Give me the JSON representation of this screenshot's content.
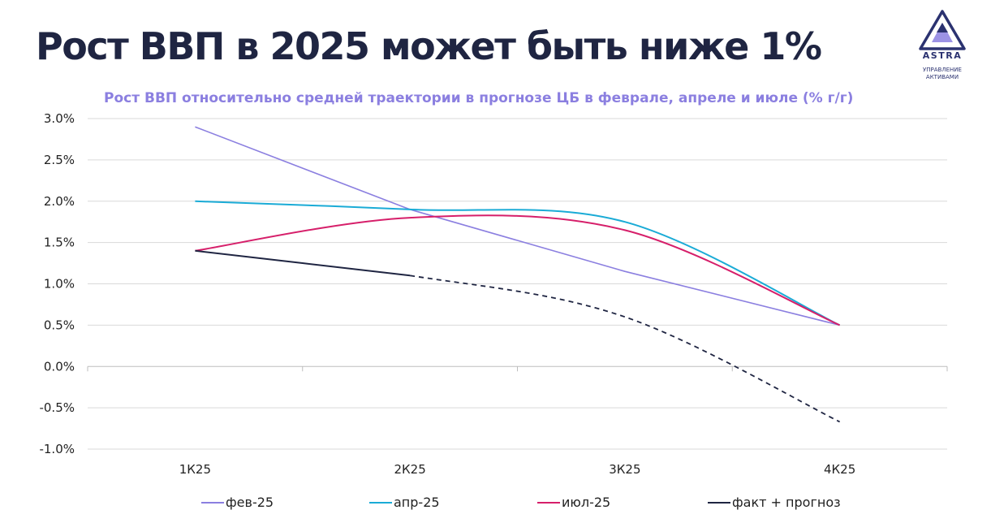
{
  "header": {
    "title": "Рост ВВП в 2025 может быть ниже 1%",
    "logo_name": "ASTRA",
    "logo_sub_1": "УПРАВЛЕНИЕ",
    "logo_sub_2": "АКТИВАМИ",
    "brand_color": "#2b3270",
    "accent_color": "#8b7fe0"
  },
  "chart_data": {
    "type": "line",
    "title": "Рост ВВП относительно средней траектории в прогнозе ЦБ в феврале, апреле и июле (% г/г)",
    "categories": [
      "1К25",
      "2К25",
      "3К25",
      "4К25"
    ],
    "yticks": [
      "3.0%",
      "2.5%",
      "2.0%",
      "1.5%",
      "1.0%",
      "0.5%",
      "0.0%",
      "-0.5%",
      "-1.0%"
    ],
    "ylim": [
      -1.0,
      3.0
    ],
    "grid": true,
    "legend_position": "bottom",
    "series": [
      {
        "name": "фев-25",
        "color": "#8b7fe0",
        "smooth": false,
        "values": [
          2.9,
          1.9,
          1.15,
          0.5
        ]
      },
      {
        "name": "апр-25",
        "color": "#1aabd6",
        "smooth": true,
        "values": [
          2.0,
          1.9,
          1.75,
          0.5
        ]
      },
      {
        "name": "июл-25",
        "color": "#d61f6a",
        "smooth": true,
        "values": [
          1.4,
          1.8,
          1.65,
          0.5
        ]
      },
      {
        "name": "факт + прогноз",
        "color": "#1f2542",
        "smooth": true,
        "values": [
          1.4,
          1.1,
          0.6,
          -0.67
        ],
        "solid_until_index": 1
      }
    ]
  }
}
